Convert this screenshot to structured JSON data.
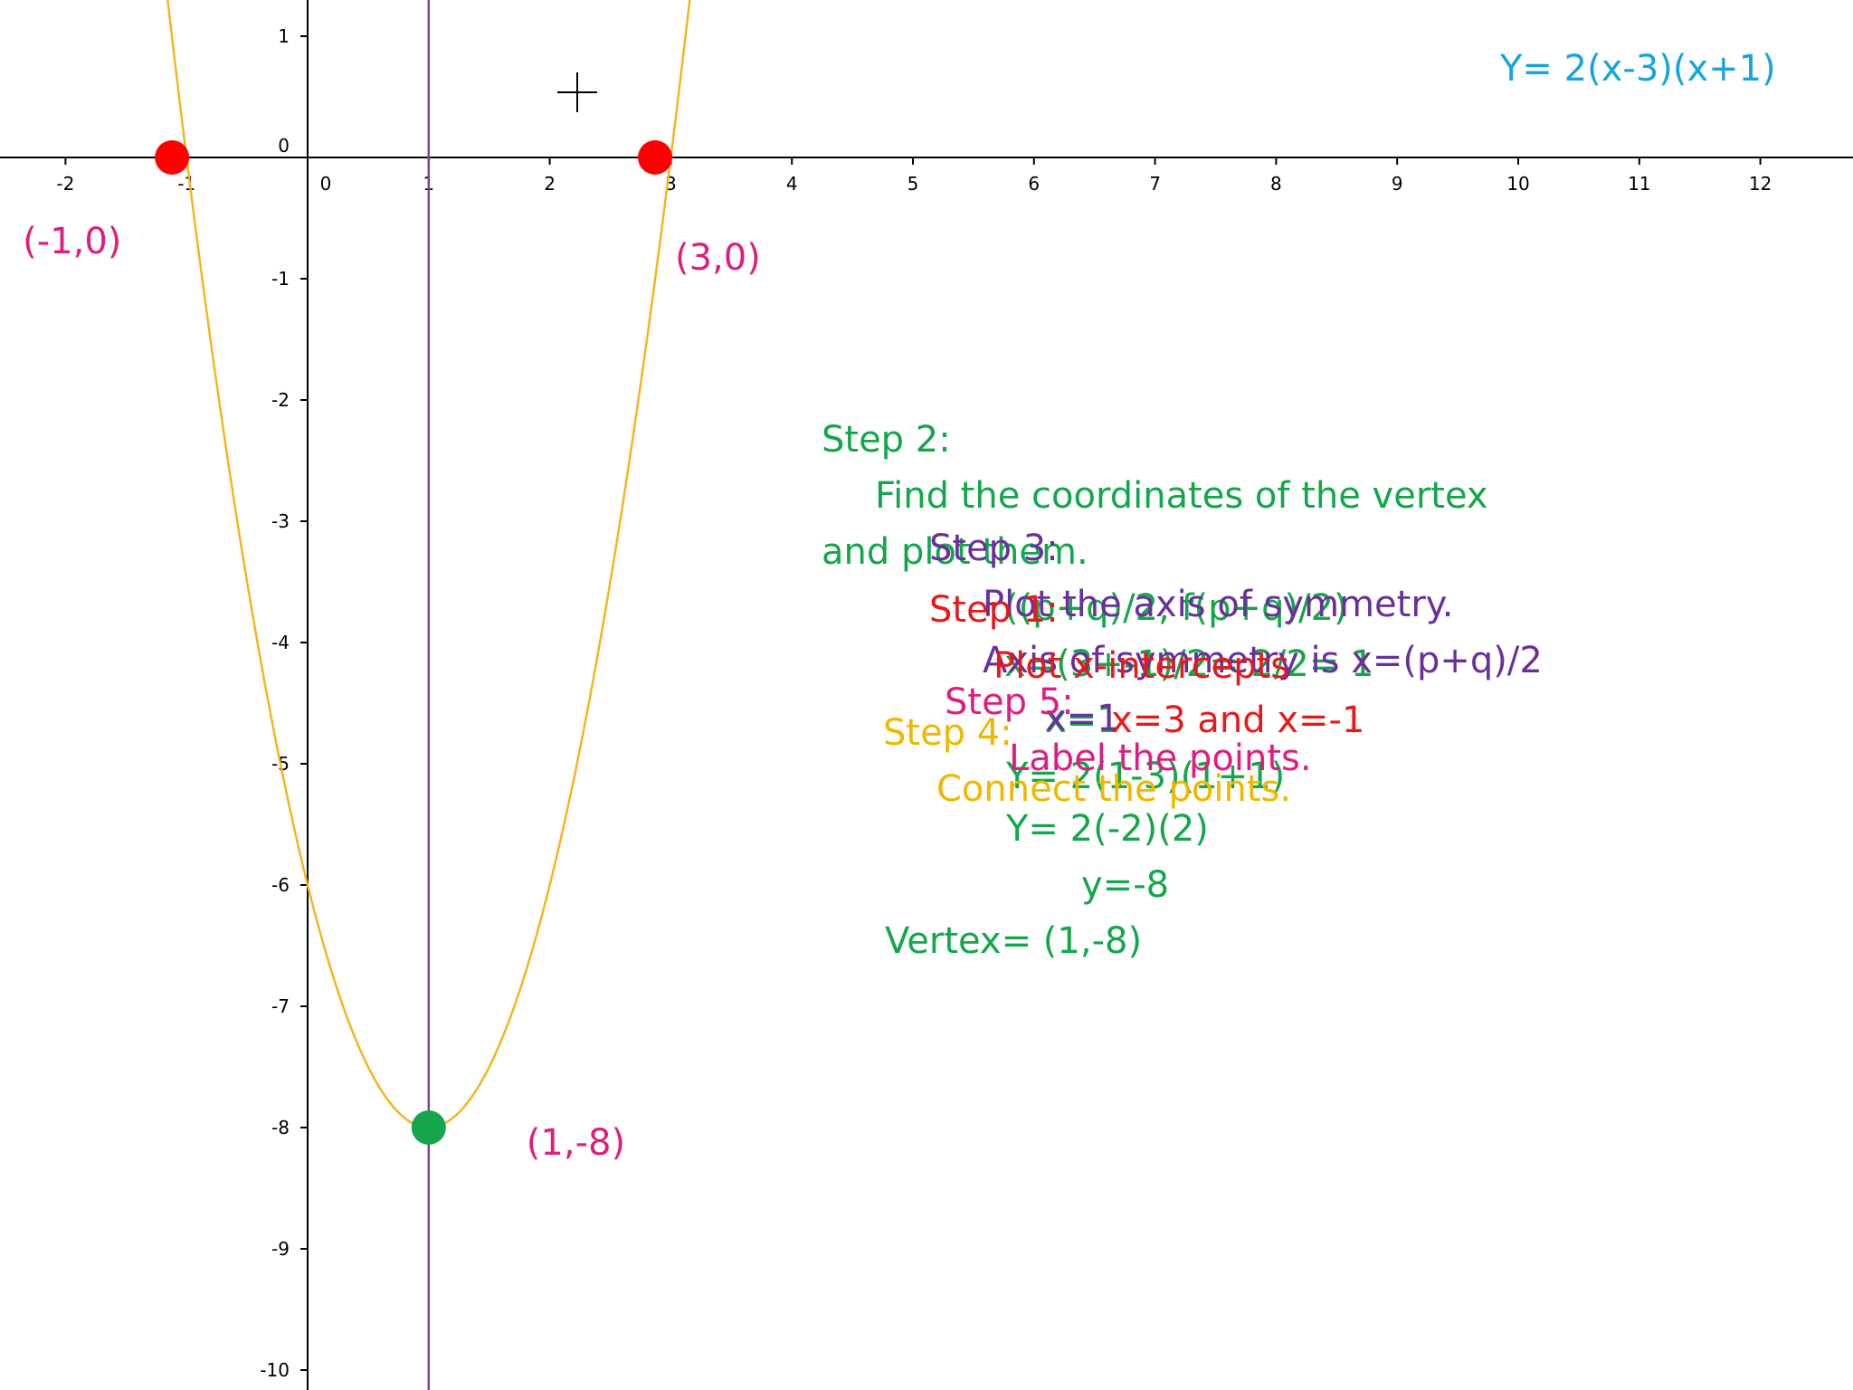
{
  "chart_data": {
    "type": "line",
    "equation": "Y= 2(x-3)(x+1)",
    "series": [
      {
        "a": 2,
        "p": 3,
        "q": -1
      }
    ],
    "xlim": [
      -2.5,
      12.5
    ],
    "ylim": [
      -10.2,
      1.3
    ],
    "x_ticks": [
      -2,
      -1,
      0,
      1,
      2,
      3,
      4,
      5,
      6,
      7,
      8,
      9,
      10,
      11,
      12
    ],
    "y_ticks": [
      1,
      0,
      -1,
      -2,
      -3,
      -4,
      -5,
      -6,
      -7,
      -8,
      -9,
      -10
    ],
    "axis_of_symmetry": 1,
    "points": [
      {
        "x": -1,
        "y": 0,
        "label": "(-1,0)",
        "color": "#ff0000"
      },
      {
        "x": 3,
        "y": 0,
        "label": "(3,0)",
        "color": "#ff0000"
      },
      {
        "x": 1,
        "y": -8,
        "label": "(1,-8)",
        "color": "#16a54a"
      }
    ],
    "colors": {
      "curve": "#f3b61f",
      "axis_line": "#7b3fa0",
      "axes": "#000000",
      "point_label": "#dd1e7f"
    },
    "grid": false
  },
  "notes": {
    "step2_title": "Step 2:",
    "step2_line1": "Find the coordinates of the vertex",
    "step2_line2": "and plot them.",
    "step2_line3": "((p+q)/2, f(p+q)/2)",
    "step2_line4": "x=(3+-1)/2= 2/2= 1",
    "step2_line5": "x=1",
    "step2_line6": "Y= 2(1-3)(1+1)",
    "step2_line7": "Y= 2(-2)(2)",
    "step2_line8": "y=-8",
    "step2_line9": "Vertex= (1,-8)",
    "step3_title": "Step 3:",
    "step3_line1": "Plot the axis of symmetry.",
    "step3_line2": "Axis of symmetry is x=(p+q)/2",
    "step3_line3": "x=1",
    "step1_title": "Step 1:",
    "step1_line1": "Plot x-intercepts",
    "step1_line2": "x=3 and x=-1",
    "step5_title": "Step 5:",
    "step5_line1": "Label the points.",
    "step4_title": "Step 4:",
    "step4_line1": "Connect the points."
  }
}
